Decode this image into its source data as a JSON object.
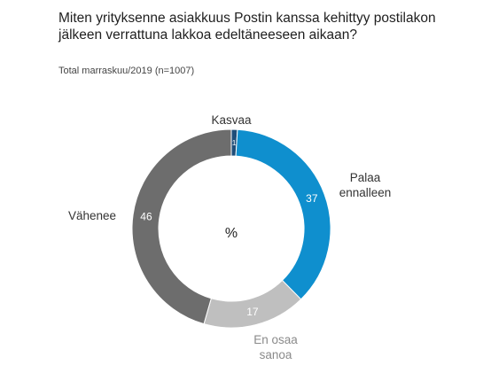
{
  "title": "Miten yrityksenne asiakkuus Postin kanssa kehittyy postilakon jälkeen verrattuna lakkoa edeltäneeseen aikaan?",
  "subtitle": "Total marraskuu/2019 (n=1007)",
  "center_label": "%",
  "chart_data": {
    "type": "pie",
    "title": "Miten yrityksenne asiakkuus Postin kanssa kehittyy postilakon jälkeen verrattuna lakkoa edeltäneeseen aikaan?",
    "subtitle": "Total marraskuu/2019 (n=1007)",
    "donut": true,
    "unit": "%",
    "slices": [
      {
        "label": "Kasvaa",
        "label_lines": [
          "Kasvaa"
        ],
        "value": 1,
        "color": "#1f4e79"
      },
      {
        "label": "Palaa ennalleen",
        "label_lines": [
          "Palaa",
          "ennalleen"
        ],
        "value": 37,
        "color": "#0f8fce"
      },
      {
        "label": "En osaa sanoa",
        "label_lines": [
          "En osaa",
          "sanoa"
        ],
        "value": 17,
        "color": "#bfbfbf"
      },
      {
        "label": "Vähenee",
        "label_lines": [
          "Vähenee"
        ],
        "value": 46,
        "color": "#6d6d6d"
      }
    ]
  }
}
